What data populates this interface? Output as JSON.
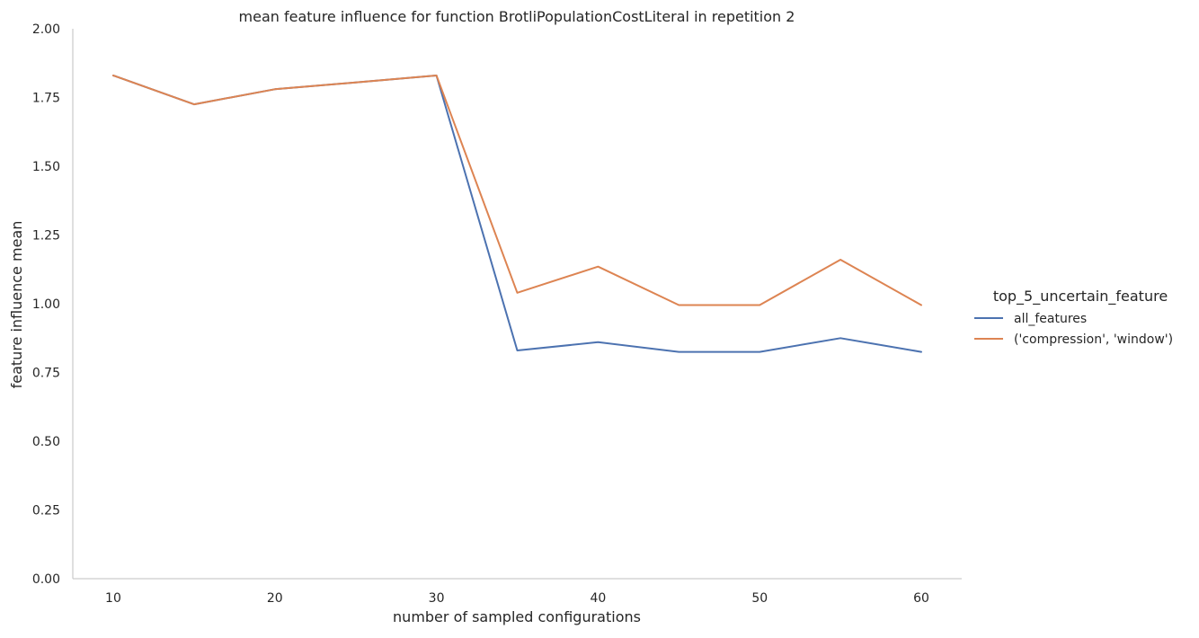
{
  "chart_data": {
    "type": "line",
    "title": "mean feature influence for function BrotliPopulationCostLiteral in repetition 2",
    "xlabel": "number of sampled configurations",
    "ylabel": "feature influence mean",
    "xlim": [
      7.5,
      62.5
    ],
    "ylim": [
      0,
      2
    ],
    "xticks": [
      10,
      20,
      30,
      40,
      50,
      60
    ],
    "xtick_labels": [
      "10",
      "20",
      "30",
      "40",
      "50",
      "60"
    ],
    "yticks": [
      0,
      0.25,
      0.5,
      0.75,
      1.0,
      1.25,
      1.5,
      1.75,
      2.0
    ],
    "ytick_labels": [
      "0.00",
      "0.25",
      "0.50",
      "0.75",
      "1.00",
      "1.25",
      "1.50",
      "1.75",
      "2.00"
    ],
    "grid": false,
    "legend": {
      "title": "top_5_uncertain_feature",
      "position": "right"
    },
    "x": [
      10,
      15,
      20,
      25,
      30,
      35,
      40,
      45,
      50,
      55,
      60
    ],
    "series": [
      {
        "name": "all_features",
        "color": "#4c72b0",
        "values": [
          1.83,
          1.725,
          1.78,
          1.805,
          1.83,
          0.83,
          0.86,
          0.825,
          0.825,
          0.875,
          0.825
        ]
      },
      {
        "name": "('compression', 'window')",
        "color": "#dd8452",
        "values": [
          1.83,
          1.725,
          1.78,
          1.805,
          1.83,
          1.04,
          1.135,
          0.995,
          0.995,
          1.16,
          0.995
        ]
      }
    ]
  }
}
